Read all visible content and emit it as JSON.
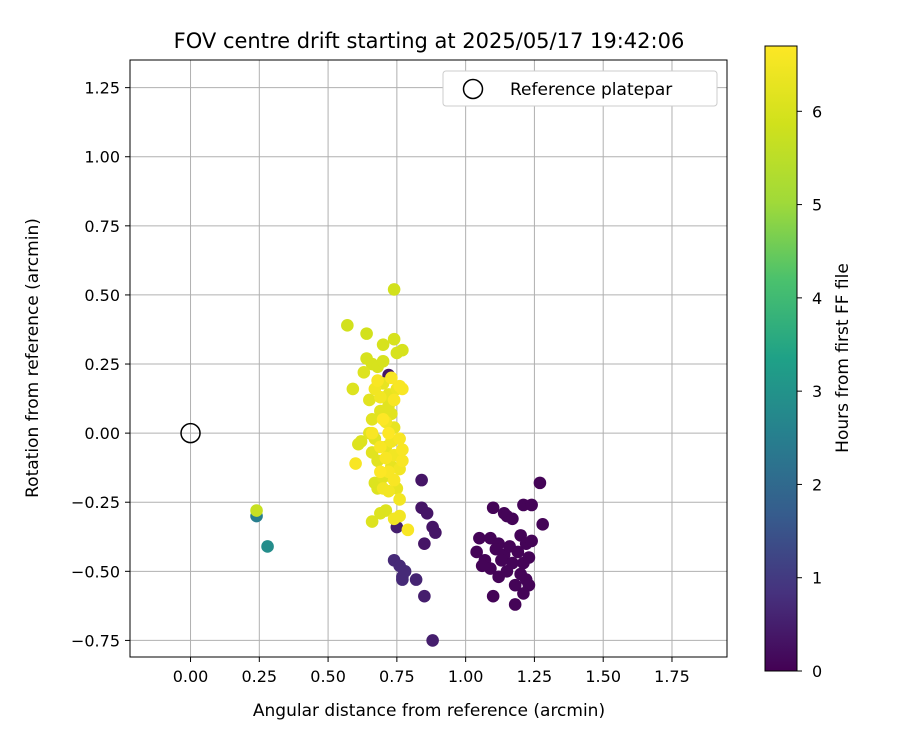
{
  "chart_data": {
    "type": "scatter",
    "title": "FOV centre drift starting at 2025/05/17 19:42:06",
    "xlabel": "Angular distance from reference (arcmin)",
    "ylabel": "Rotation from reference (arcmin)",
    "xlim": [
      -0.22,
      1.95
    ],
    "ylim": [
      -0.81,
      1.35
    ],
    "xticks": [
      "0.00",
      "0.25",
      "0.50",
      "0.75",
      "1.00",
      "1.25",
      "1.50",
      "1.75"
    ],
    "xtick_values": [
      0,
      0.25,
      0.5,
      0.75,
      1.0,
      1.25,
      1.5,
      1.75
    ],
    "yticks": [
      "1.25",
      "1.00",
      "0.75",
      "0.50",
      "0.25",
      "0.00",
      "−0.25",
      "−0.50",
      "−0.75"
    ],
    "ytick_values": [
      1.25,
      1.0,
      0.75,
      0.5,
      0.25,
      0.0,
      -0.25,
      -0.5,
      -0.75
    ],
    "grid": true,
    "legend": {
      "position": "top-right",
      "entries": [
        "Reference platepar"
      ]
    },
    "reference": {
      "x": 0.0,
      "y": 0.0,
      "marker": "open-circle"
    },
    "colorbar": {
      "label": "Hours from first FF file",
      "range": [
        0,
        6.7
      ],
      "ticks": [
        "0",
        "1",
        "2",
        "3",
        "4",
        "5",
        "6"
      ],
      "tick_values": [
        0,
        1,
        2,
        3,
        4,
        5,
        6
      ],
      "colormap": "viridis"
    },
    "points": [
      {
        "x": 1.1,
        "y": -0.27,
        "h": 0.05
      },
      {
        "x": 1.14,
        "y": -0.29,
        "h": 0.05
      },
      {
        "x": 1.21,
        "y": -0.26,
        "h": 0.05
      },
      {
        "x": 1.24,
        "y": -0.26,
        "h": 0.05
      },
      {
        "x": 1.27,
        "y": -0.18,
        "h": 0.05
      },
      {
        "x": 1.28,
        "y": -0.33,
        "h": 0.05
      },
      {
        "x": 1.05,
        "y": -0.38,
        "h": 0.05
      },
      {
        "x": 1.09,
        "y": -0.38,
        "h": 0.05
      },
      {
        "x": 1.12,
        "y": -0.4,
        "h": 0.05
      },
      {
        "x": 1.15,
        "y": -0.3,
        "h": 0.05
      },
      {
        "x": 1.17,
        "y": -0.31,
        "h": 0.05
      },
      {
        "x": 1.2,
        "y": -0.37,
        "h": 0.05
      },
      {
        "x": 1.22,
        "y": -0.4,
        "h": 0.05
      },
      {
        "x": 1.24,
        "y": -0.39,
        "h": 0.05
      },
      {
        "x": 1.04,
        "y": -0.43,
        "h": 0.05
      },
      {
        "x": 1.07,
        "y": -0.46,
        "h": 0.05
      },
      {
        "x": 1.11,
        "y": -0.42,
        "h": 0.05
      },
      {
        "x": 1.14,
        "y": -0.44,
        "h": 0.05
      },
      {
        "x": 1.16,
        "y": -0.41,
        "h": 0.05
      },
      {
        "x": 1.19,
        "y": -0.43,
        "h": 0.05
      },
      {
        "x": 1.21,
        "y": -0.47,
        "h": 0.05
      },
      {
        "x": 1.23,
        "y": -0.45,
        "h": 0.05
      },
      {
        "x": 1.09,
        "y": -0.49,
        "h": 0.05
      },
      {
        "x": 1.12,
        "y": -0.52,
        "h": 0.05
      },
      {
        "x": 1.15,
        "y": -0.5,
        "h": 0.05
      },
      {
        "x": 1.18,
        "y": -0.55,
        "h": 0.05
      },
      {
        "x": 1.2,
        "y": -0.51,
        "h": 0.05
      },
      {
        "x": 1.22,
        "y": -0.53,
        "h": 0.05
      },
      {
        "x": 1.23,
        "y": -0.55,
        "h": 0.05
      },
      {
        "x": 1.1,
        "y": -0.59,
        "h": 0.05
      },
      {
        "x": 1.18,
        "y": -0.62,
        "h": 0.05
      },
      {
        "x": 1.21,
        "y": -0.58,
        "h": 0.05
      },
      {
        "x": 1.06,
        "y": -0.48,
        "h": 0.05
      },
      {
        "x": 1.13,
        "y": -0.46,
        "h": 0.05
      },
      {
        "x": 1.17,
        "y": -0.47,
        "h": 0.05
      },
      {
        "x": 0.72,
        "y": 0.21,
        "h": 0.35
      },
      {
        "x": 0.84,
        "y": -0.17,
        "h": 0.35
      },
      {
        "x": 0.84,
        "y": -0.27,
        "h": 0.35
      },
      {
        "x": 0.86,
        "y": -0.29,
        "h": 0.35
      },
      {
        "x": 0.88,
        "y": -0.34,
        "h": 0.35
      },
      {
        "x": 0.89,
        "y": -0.36,
        "h": 0.35
      },
      {
        "x": 0.85,
        "y": -0.4,
        "h": 0.35
      },
      {
        "x": 0.75,
        "y": -0.34,
        "h": 0.5
      },
      {
        "x": 0.74,
        "y": -0.46,
        "h": 0.7
      },
      {
        "x": 0.76,
        "y": -0.48,
        "h": 0.7
      },
      {
        "x": 0.77,
        "y": -0.52,
        "h": 0.7
      },
      {
        "x": 0.77,
        "y": -0.53,
        "h": 0.7
      },
      {
        "x": 0.78,
        "y": -0.5,
        "h": 0.7
      },
      {
        "x": 0.82,
        "y": -0.53,
        "h": 0.6
      },
      {
        "x": 0.85,
        "y": -0.59,
        "h": 0.5
      },
      {
        "x": 0.88,
        "y": -0.75,
        "h": 0.5
      },
      {
        "x": 0.24,
        "y": -0.3,
        "h": 2.5
      },
      {
        "x": 0.28,
        "y": -0.41,
        "h": 2.85
      },
      {
        "x": 0.24,
        "y": -0.28,
        "h": 5.7
      },
      {
        "x": 0.74,
        "y": 0.52,
        "h": 5.9
      },
      {
        "x": 0.57,
        "y": 0.39,
        "h": 5.9
      },
      {
        "x": 0.64,
        "y": 0.36,
        "h": 5.9
      },
      {
        "x": 0.7,
        "y": 0.32,
        "h": 6.0
      },
      {
        "x": 0.74,
        "y": 0.34,
        "h": 6.0
      },
      {
        "x": 0.77,
        "y": 0.3,
        "h": 6.0
      },
      {
        "x": 0.75,
        "y": 0.29,
        "h": 6.0
      },
      {
        "x": 0.64,
        "y": 0.27,
        "h": 6.0
      },
      {
        "x": 0.66,
        "y": 0.25,
        "h": 6.0
      },
      {
        "x": 0.68,
        "y": 0.24,
        "h": 6.0
      },
      {
        "x": 0.7,
        "y": 0.26,
        "h": 6.0
      },
      {
        "x": 0.63,
        "y": 0.22,
        "h": 6.1
      },
      {
        "x": 0.59,
        "y": 0.16,
        "h": 6.1
      },
      {
        "x": 0.62,
        "y": -0.03,
        "h": 6.1
      },
      {
        "x": 0.61,
        "y": -0.04,
        "h": 6.1
      },
      {
        "x": 0.66,
        "y": -0.32,
        "h": 6.1
      },
      {
        "x": 0.69,
        "y": -0.29,
        "h": 6.1
      },
      {
        "x": 0.71,
        "y": -0.28,
        "h": 6.1
      },
      {
        "x": 0.67,
        "y": -0.18,
        "h": 6.1
      },
      {
        "x": 0.68,
        "y": -0.2,
        "h": 6.1
      },
      {
        "x": 0.7,
        "y": -0.16,
        "h": 6.2
      },
      {
        "x": 0.65,
        "y": 0.12,
        "h": 6.2
      },
      {
        "x": 0.66,
        "y": 0.05,
        "h": 6.2
      },
      {
        "x": 0.65,
        "y": 0.0,
        "h": 6.2
      },
      {
        "x": 0.67,
        "y": -0.02,
        "h": 6.2
      },
      {
        "x": 0.66,
        "y": -0.07,
        "h": 6.2
      },
      {
        "x": 0.68,
        "y": -0.1,
        "h": 6.2
      },
      {
        "x": 0.69,
        "y": 0.08,
        "h": 6.2
      },
      {
        "x": 0.72,
        "y": 0.1,
        "h": 6.2
      },
      {
        "x": 0.73,
        "y": 0.07,
        "h": 6.2
      },
      {
        "x": 0.74,
        "y": 0.02,
        "h": 6.3
      },
      {
        "x": 0.71,
        "y": -0.05,
        "h": 6.3
      },
      {
        "x": 0.73,
        "y": -0.12,
        "h": 6.3
      },
      {
        "x": 0.75,
        "y": -0.2,
        "h": 6.3
      },
      {
        "x": 0.7,
        "y": 0.18,
        "h": 6.3
      },
      {
        "x": 0.72,
        "y": 0.14,
        "h": 6.3
      },
      {
        "x": 0.75,
        "y": 0.16,
        "h": 6.4
      },
      {
        "x": 0.67,
        "y": 0.16,
        "h": 6.5
      },
      {
        "x": 0.69,
        "y": 0.13,
        "h": 6.5
      },
      {
        "x": 0.71,
        "y": 0.04,
        "h": 6.5
      },
      {
        "x": 0.73,
        "y": -0.03,
        "h": 6.5
      },
      {
        "x": 0.74,
        "y": -0.08,
        "h": 6.5
      },
      {
        "x": 0.76,
        "y": -0.13,
        "h": 6.5
      },
      {
        "x": 0.7,
        "y": -0.2,
        "h": 6.5
      },
      {
        "x": 0.72,
        "y": -0.21,
        "h": 6.5
      },
      {
        "x": 0.76,
        "y": -0.24,
        "h": 6.5
      },
      {
        "x": 0.76,
        "y": -0.3,
        "h": 6.5
      },
      {
        "x": 0.74,
        "y": -0.31,
        "h": 6.5
      },
      {
        "x": 0.79,
        "y": -0.35,
        "h": 6.6
      },
      {
        "x": 0.6,
        "y": -0.11,
        "h": 6.6
      },
      {
        "x": 0.66,
        "y": 0.0,
        "h": 6.6
      },
      {
        "x": 0.69,
        "y": -0.05,
        "h": 6.6
      },
      {
        "x": 0.71,
        "y": -0.09,
        "h": 6.6
      },
      {
        "x": 0.72,
        "y": -0.14,
        "h": 6.6
      },
      {
        "x": 0.74,
        "y": -0.17,
        "h": 6.6
      },
      {
        "x": 0.76,
        "y": -0.02,
        "h": 6.6
      },
      {
        "x": 0.77,
        "y": -0.06,
        "h": 6.6
      },
      {
        "x": 0.77,
        "y": -0.1,
        "h": 6.6
      },
      {
        "x": 0.74,
        "y": 0.12,
        "h": 6.6
      },
      {
        "x": 0.76,
        "y": 0.17,
        "h": 6.6
      },
      {
        "x": 0.77,
        "y": 0.16,
        "h": 6.6
      },
      {
        "x": 0.68,
        "y": 0.19,
        "h": 6.6
      },
      {
        "x": 0.73,
        "y": 0.2,
        "h": 6.6
      },
      {
        "x": 0.69,
        "y": -0.14,
        "h": 6.7
      },
      {
        "x": 0.72,
        "y": 0.0,
        "h": 6.7
      },
      {
        "x": 0.7,
        "y": 0.05,
        "h": 6.7
      }
    ]
  }
}
